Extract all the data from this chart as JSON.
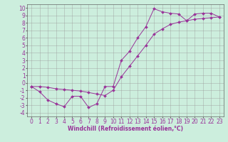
{
  "xlabel": "Windchill (Refroidissement éolien,°C)",
  "background_color": "#cceedd",
  "grid_color": "#999999",
  "line_color": "#993399",
  "xlim": [
    -0.5,
    23.5
  ],
  "ylim": [
    -4.5,
    10.5
  ],
  "xticks": [
    0,
    1,
    2,
    3,
    4,
    5,
    6,
    7,
    8,
    9,
    10,
    11,
    12,
    13,
    14,
    15,
    16,
    17,
    18,
    19,
    20,
    21,
    22,
    23
  ],
  "yticks": [
    -4,
    -3,
    -2,
    -1,
    0,
    1,
    2,
    3,
    4,
    5,
    6,
    7,
    8,
    9,
    10
  ],
  "curve1_x": [
    0,
    1,
    2,
    3,
    4,
    5,
    6,
    7,
    8,
    9,
    10,
    11,
    12,
    13,
    14,
    15,
    16,
    17,
    18,
    19,
    20,
    21,
    22,
    23
  ],
  "curve1_y": [
    -0.5,
    -1.2,
    -2.3,
    -2.8,
    -3.2,
    -1.8,
    -1.8,
    -3.3,
    -2.8,
    -0.5,
    -0.5,
    3.0,
    4.2,
    6.0,
    7.5,
    9.9,
    9.5,
    9.3,
    9.2,
    8.3,
    9.2,
    9.3,
    9.3,
    8.8
  ],
  "curve2_x": [
    0,
    1,
    2,
    3,
    4,
    5,
    6,
    7,
    8,
    9,
    10,
    11,
    12,
    13,
    14,
    15,
    16,
    17,
    18,
    19,
    20,
    21,
    22,
    23
  ],
  "curve2_y": [
    -0.5,
    -0.5,
    -0.6,
    -0.8,
    -0.9,
    -1.0,
    -1.1,
    -1.3,
    -1.5,
    -1.7,
    -1.0,
    0.8,
    2.2,
    3.6,
    5.0,
    6.5,
    7.2,
    7.8,
    8.1,
    8.3,
    8.5,
    8.6,
    8.7,
    8.8
  ],
  "marker": "D",
  "markersize": 2.0,
  "linewidth": 0.7,
  "tick_fontsize": 5.5,
  "xlabel_fontsize": 5.5
}
